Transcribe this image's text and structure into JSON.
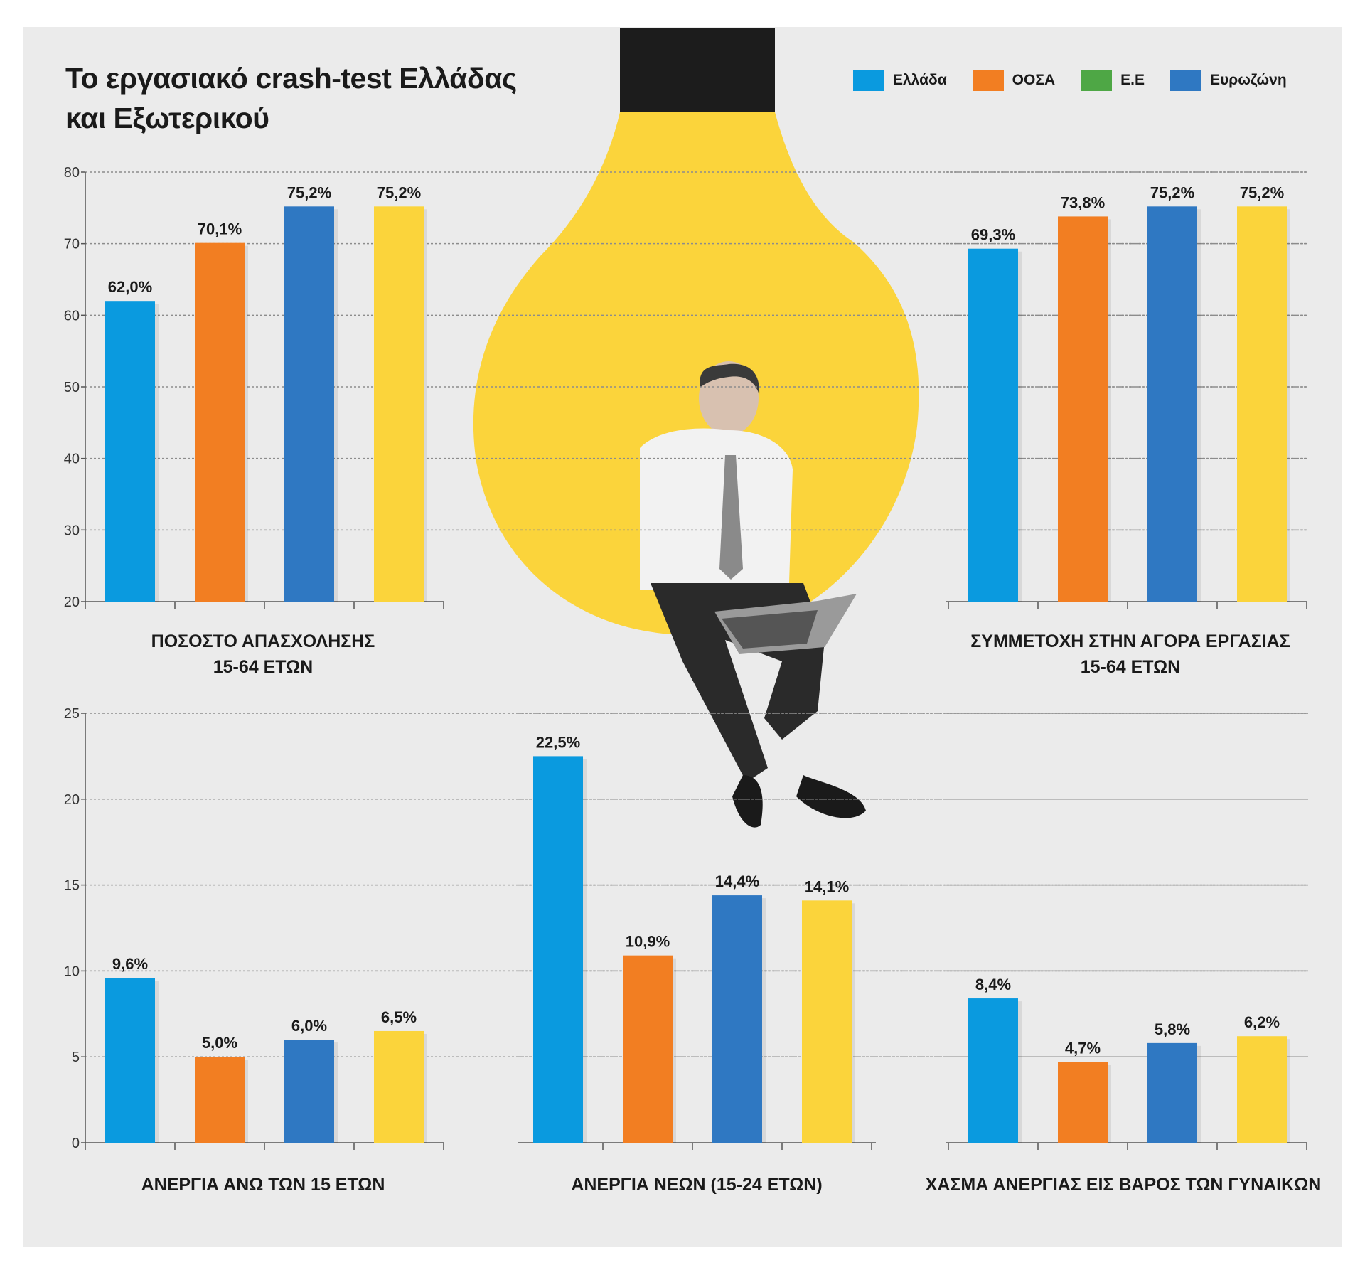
{
  "title": {
    "line1": "Το εργασιακό crash-test Ελλάδας",
    "line2": "και Εξωτερικού"
  },
  "legend": [
    {
      "label": "Ελλάδα",
      "color": "#0a9adf"
    },
    {
      "label": "ΟΟΣΑ",
      "color": "#f27e22"
    },
    {
      "label": "Ε.Ε",
      "color": "#4ea745"
    },
    {
      "label": "Ευρωζώνη",
      "color": "#2f78c2"
    }
  ],
  "bar_colors": [
    "#0a9adf",
    "#f27e22",
    "#2f78c2",
    "#fbd43b"
  ],
  "illustration": {
    "bulb_color": "#fbd43b",
    "socket_color": "#1c1c1c",
    "icon": "lightbulb-man-laptop-icon"
  },
  "chart_data": [
    {
      "type": "bar",
      "title_lines": [
        "ΠΟΣΟΣΤΟ ΑΠΑΣΧΟΛΗΣΗΣ",
        "15-64 ΕΤΩΝ"
      ],
      "values": [
        62.0,
        70.1,
        75.2,
        75.2
      ],
      "labels": [
        "62,0%",
        "70,1%",
        "75,2%",
        "75,2%"
      ],
      "ylim": [
        20,
        80
      ],
      "yticks": [
        "20",
        "30",
        "40",
        "50",
        "60",
        "70",
        "80"
      ],
      "grid": true
    },
    {
      "type": "bar",
      "title_lines": [
        "ΣΥΜΜΕΤΟΧΗ ΣΤΗΝ ΑΓΟΡΑ ΕΡΓΑΣΙΑΣ",
        "15-64 ΕΤΩΝ"
      ],
      "values": [
        69.3,
        73.8,
        75.2,
        75.2
      ],
      "labels": [
        "69,3%",
        "73,8%",
        "75,2%",
        "75,2%"
      ],
      "ylim": [
        20,
        80
      ],
      "grid": true
    },
    {
      "type": "bar",
      "title_lines": [
        "ΑΝΕΡΓΙΑ ΑΝΩ ΤΩΝ 15 ΕΤΩΝ"
      ],
      "values": [
        9.6,
        5.0,
        6.0,
        6.5
      ],
      "labels": [
        "9,6%",
        "5,0%",
        "6,0%",
        "6,5%"
      ],
      "ylim": [
        0,
        25
      ],
      "yticks": [
        "0",
        "5",
        "10",
        "15",
        "20",
        "25"
      ],
      "grid": true
    },
    {
      "type": "bar",
      "title_lines": [
        "ΑΝΕΡΓΙΑ ΝΕΩΝ (15-24 ΕΤΩΝ)"
      ],
      "values": [
        22.5,
        10.9,
        14.4,
        14.1
      ],
      "labels": [
        "22,5%",
        "10,9%",
        "14,4%",
        "14,1%"
      ],
      "ylim": [
        0,
        25
      ],
      "grid": true
    },
    {
      "type": "bar",
      "title_lines": [
        "ΧΑΣΜΑ ΑΝΕΡΓΙΑΣ ΕΙΣ ΒΑΡΟΣ ΤΩΝ ΓΥΝΑΙΚΩΝ"
      ],
      "values": [
        8.4,
        4.7,
        5.8,
        6.2
      ],
      "labels": [
        "8,4%",
        "4,7%",
        "5,8%",
        "6,2%"
      ],
      "ylim": [
        0,
        25
      ],
      "grid": true
    }
  ]
}
